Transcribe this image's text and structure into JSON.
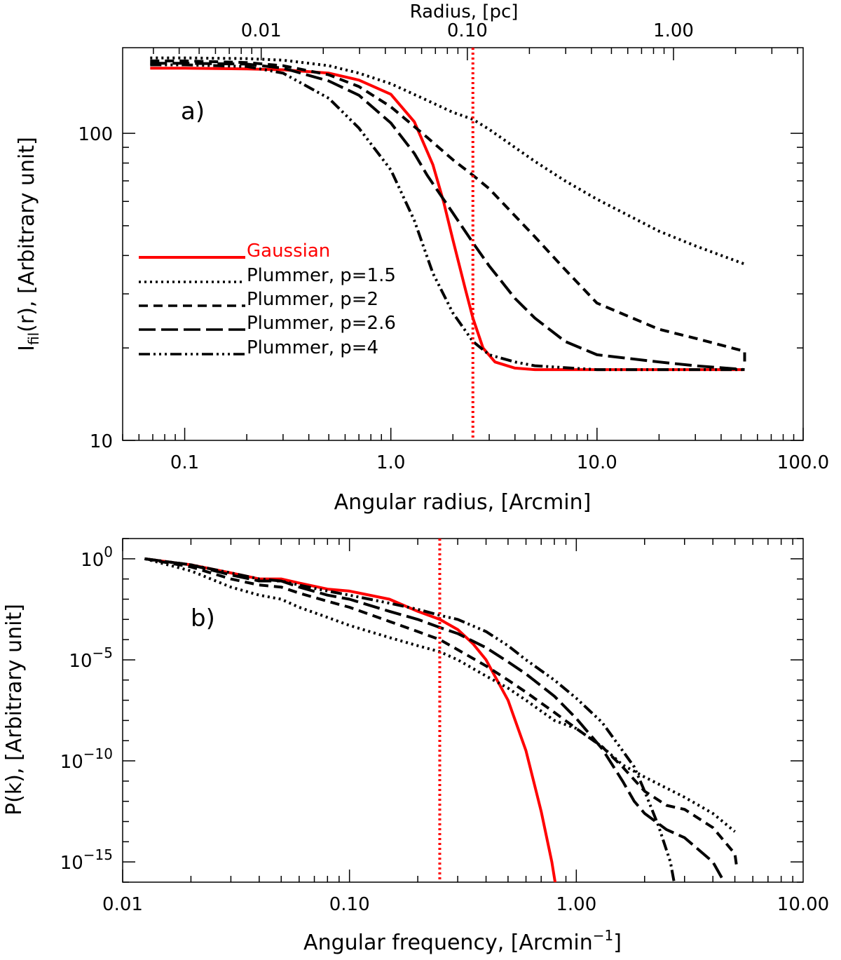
{
  "colors": {
    "gaussian": "#ff0000",
    "plummer": "#000000",
    "axis": "#000000"
  },
  "chart_data": [
    {
      "type": "line",
      "panel_label": "a)",
      "xlabel": "Angular radius, [Arcmin]",
      "ylabel_main": "I",
      "ylabel_sub": "fil",
      "ylabel_rest": "(r), [Arbitrary unit]",
      "top_xlabel": "Radius, [pc]",
      "xscale": "log",
      "yscale": "log",
      "xlim": [
        0.05,
        100
      ],
      "ylim": [
        10,
        190
      ],
      "xticks": [
        {
          "value": 0.1,
          "label": "0.1"
        },
        {
          "value": 1,
          "label": "1.0"
        },
        {
          "value": 10,
          "label": "10.0"
        },
        {
          "value": 100,
          "label": "100.0"
        }
      ],
      "yticks": [
        {
          "value": 10,
          "label": "10"
        },
        {
          "value": 100,
          "label": "100"
        }
      ],
      "top_ticks": [
        {
          "value": 0.01,
          "label": "0.01"
        },
        {
          "value": 0.1,
          "label": "0.10"
        },
        {
          "value": 1,
          "label": "1.00"
        }
      ],
      "top_axis_scale_arcmin_per_pc": 23.5,
      "vline_x": 2.5,
      "legend": [
        "Gaussian",
        "Plummer, p=1.5",
        "Plummer, p=2",
        "Plummer, p=2.6",
        "Plummer, p=4"
      ],
      "series": [
        {
          "name": "Gaussian",
          "style": "solid",
          "color": "#ff0000",
          "points": [
            [
              0.068,
              163
            ],
            [
              0.1,
              163
            ],
            [
              0.2,
              162
            ],
            [
              0.3,
              161
            ],
            [
              0.5,
              157
            ],
            [
              0.7,
              149
            ],
            [
              1.0,
              134
            ],
            [
              1.3,
              109
            ],
            [
              1.6,
              79
            ],
            [
              1.8,
              60
            ],
            [
              2.0,
              45
            ],
            [
              2.3,
              31
            ],
            [
              2.5,
              25
            ],
            [
              2.8,
              20
            ],
            [
              3.2,
              18
            ],
            [
              4.0,
              17.2
            ],
            [
              5.0,
              17
            ],
            [
              10,
              17
            ],
            [
              20,
              17
            ],
            [
              52,
              17
            ]
          ]
        },
        {
          "name": "Plummer, p=1.5",
          "style": "dotted",
          "color": "#000000",
          "points": [
            [
              0.068,
              176
            ],
            [
              0.1,
              176
            ],
            [
              0.2,
              175
            ],
            [
              0.3,
              173
            ],
            [
              0.5,
              166
            ],
            [
              0.7,
              157
            ],
            [
              1.0,
              145
            ],
            [
              1.5,
              128
            ],
            [
              2.0,
              117
            ],
            [
              2.5,
              111
            ],
            [
              3.0,
              103
            ],
            [
              5.0,
              81
            ],
            [
              7.0,
              70
            ],
            [
              10,
              61
            ],
            [
              20,
              48
            ],
            [
              30,
              43
            ],
            [
              52,
              37.5
            ]
          ]
        },
        {
          "name": "Plummer, p=2",
          "style": "dashed",
          "color": "#000000",
          "points": [
            [
              0.068,
              172
            ],
            [
              0.1,
              172
            ],
            [
              0.2,
              170
            ],
            [
              0.3,
              166
            ],
            [
              0.5,
              155
            ],
            [
              0.7,
              142
            ],
            [
              1.0,
              122
            ],
            [
              1.5,
              97
            ],
            [
              2.0,
              82
            ],
            [
              2.5,
              73
            ],
            [
              3.0,
              66
            ],
            [
              5.0,
              46
            ],
            [
              7.0,
              36
            ],
            [
              10,
              28
            ],
            [
              20,
              23
            ],
            [
              30,
              21.5
            ],
            [
              52,
              19.5
            ],
            [
              52,
              18
            ]
          ]
        },
        {
          "name": "Plummer, p=2.6",
          "style": "longdash",
          "color": "#000000",
          "points": [
            [
              0.068,
              169
            ],
            [
              0.1,
              169
            ],
            [
              0.2,
              168
            ],
            [
              0.3,
              163
            ],
            [
              0.5,
              148
            ],
            [
              0.7,
              133
            ],
            [
              1.0,
              108
            ],
            [
              1.3,
              86
            ],
            [
              1.5,
              73
            ],
            [
              2.0,
              55
            ],
            [
              2.5,
              44
            ],
            [
              3.0,
              37
            ],
            [
              4.0,
              29
            ],
            [
              5.0,
              25
            ],
            [
              7.0,
              21
            ],
            [
              10,
              19
            ],
            [
              20,
              18
            ],
            [
              30,
              17.5
            ],
            [
              52,
              17
            ]
          ]
        },
        {
          "name": "Plummer, p=4",
          "style": "dashdotdot",
          "color": "#000000",
          "points": [
            [
              0.068,
              167
            ],
            [
              0.1,
              167
            ],
            [
              0.2,
              165
            ],
            [
              0.3,
              157
            ],
            [
              0.5,
              130
            ],
            [
              0.7,
              104
            ],
            [
              1.0,
              76
            ],
            [
              1.3,
              52
            ],
            [
              1.6,
              35
            ],
            [
              2.0,
              26
            ],
            [
              2.5,
              21
            ],
            [
              3.0,
              19
            ],
            [
              4.0,
              18
            ],
            [
              5.0,
              17.5
            ],
            [
              10,
              17
            ],
            [
              52,
              17
            ]
          ]
        }
      ]
    },
    {
      "type": "line",
      "panel_label": "b)",
      "xlabel_main": "Angular frequency, [Arcmin",
      "xlabel_sup": "−1",
      "xlabel_end": "]",
      "ylabel": "P(k), [Arbitrary unit]",
      "xscale": "log",
      "yscale": "log",
      "xlim": [
        0.01,
        10
      ],
      "ylim_exp": [
        -16,
        1
      ],
      "xticks": [
        {
          "value": 0.01,
          "label": "0.01"
        },
        {
          "value": 0.1,
          "label": "0.10"
        },
        {
          "value": 1,
          "label": "1.00"
        },
        {
          "value": 10,
          "label": "10.00"
        }
      ],
      "yticks": [
        {
          "exp": 0,
          "base": "10",
          "sup": "0"
        },
        {
          "exp": -5,
          "base": "10",
          "sup": "−5"
        },
        {
          "exp": -10,
          "base": "10",
          "sup": "−10"
        },
        {
          "exp": -15,
          "base": "10",
          "sup": "−15"
        }
      ],
      "vline_x": 0.25,
      "panel_label_pos": "upper-left",
      "series": [
        {
          "name": "Gaussian",
          "style": "solid",
          "color": "#ff0000",
          "points_exp": [
            [
              0.0125,
              0
            ],
            [
              0.02,
              -0.3
            ],
            [
              0.03,
              -0.7
            ],
            [
              0.04,
              -1.0
            ],
            [
              0.05,
              -1.0
            ],
            [
              0.06,
              -1.2
            ],
            [
              0.08,
              -1.5
            ],
            [
              0.1,
              -1.6
            ],
            [
              0.15,
              -2.0
            ],
            [
              0.2,
              -2.6
            ],
            [
              0.25,
              -3.0
            ],
            [
              0.3,
              -3.5
            ],
            [
              0.35,
              -4.2
            ],
            [
              0.4,
              -5.0
            ],
            [
              0.5,
              -7.0
            ],
            [
              0.6,
              -9.5
            ],
            [
              0.7,
              -12.5
            ],
            [
              0.78,
              -15.0
            ],
            [
              0.82,
              -16.5
            ]
          ]
        },
        {
          "name": "Plummer, p=1.5",
          "style": "dotted",
          "color": "#000000",
          "points_exp": [
            [
              0.0125,
              0
            ],
            [
              0.02,
              -0.6
            ],
            [
              0.03,
              -1.4
            ],
            [
              0.04,
              -1.8
            ],
            [
              0.05,
              -2.0
            ],
            [
              0.06,
              -2.4
            ],
            [
              0.08,
              -2.9
            ],
            [
              0.1,
              -3.3
            ],
            [
              0.15,
              -3.9
            ],
            [
              0.2,
              -4.3
            ],
            [
              0.25,
              -4.6
            ],
            [
              0.3,
              -5.0
            ],
            [
              0.4,
              -5.8
            ],
            [
              0.5,
              -6.4
            ],
            [
              0.6,
              -7.0
            ],
            [
              0.8,
              -8.0
            ],
            [
              1.0,
              -8.4
            ],
            [
              1.3,
              -9.3
            ],
            [
              1.6,
              -10.2
            ],
            [
              2.0,
              -10.8
            ],
            [
              3.0,
              -11.8
            ],
            [
              4.0,
              -12.6
            ],
            [
              5.0,
              -13.5
            ]
          ]
        },
        {
          "name": "Plummer, p=2",
          "style": "dashed",
          "color": "#000000",
          "points_exp": [
            [
              0.0125,
              0
            ],
            [
              0.02,
              -0.4
            ],
            [
              0.03,
              -1.0
            ],
            [
              0.04,
              -1.3
            ],
            [
              0.05,
              -1.4
            ],
            [
              0.06,
              -1.7
            ],
            [
              0.08,
              -2.1
            ],
            [
              0.1,
              -2.4
            ],
            [
              0.15,
              -3.1
            ],
            [
              0.2,
              -3.6
            ],
            [
              0.25,
              -4.0
            ],
            [
              0.3,
              -4.5
            ],
            [
              0.4,
              -5.3
            ],
            [
              0.5,
              -6.0
            ],
            [
              0.6,
              -6.6
            ],
            [
              0.8,
              -7.6
            ],
            [
              1.0,
              -8.4
            ],
            [
              1.3,
              -9.3
            ],
            [
              1.6,
              -10.3
            ],
            [
              2.0,
              -11.5
            ],
            [
              2.5,
              -12.2
            ],
            [
              3.0,
              -12.4
            ],
            [
              4.0,
              -13.3
            ],
            [
              5.0,
              -14.6
            ],
            [
              5.1,
              -15.3
            ]
          ]
        },
        {
          "name": "Plummer, p=2.6",
          "style": "longdash",
          "color": "#000000",
          "points_exp": [
            [
              0.0125,
              0
            ],
            [
              0.02,
              -0.3
            ],
            [
              0.03,
              -0.8
            ],
            [
              0.04,
              -1.1
            ],
            [
              0.05,
              -1.1
            ],
            [
              0.06,
              -1.4
            ],
            [
              0.08,
              -1.8
            ],
            [
              0.1,
              -2.0
            ],
            [
              0.15,
              -2.6
            ],
            [
              0.2,
              -3.0
            ],
            [
              0.25,
              -3.4
            ],
            [
              0.3,
              -3.7
            ],
            [
              0.4,
              -4.4
            ],
            [
              0.5,
              -5.1
            ],
            [
              0.6,
              -5.7
            ],
            [
              0.8,
              -6.8
            ],
            [
              1.0,
              -7.9
            ],
            [
              1.3,
              -9.4
            ],
            [
              1.6,
              -11.0
            ],
            [
              1.8,
              -12.0
            ],
            [
              2.0,
              -12.6
            ],
            [
              2.5,
              -13.4
            ],
            [
              3.0,
              -13.8
            ],
            [
              4.0,
              -15.0
            ],
            [
              4.7,
              -16.4
            ]
          ]
        },
        {
          "name": "Plummer, p=4",
          "style": "dashdotdot",
          "color": "#000000",
          "points_exp": [
            [
              0.0125,
              0
            ],
            [
              0.02,
              -0.3
            ],
            [
              0.03,
              -0.7
            ],
            [
              0.04,
              -1.0
            ],
            [
              0.05,
              -1.1
            ],
            [
              0.06,
              -1.3
            ],
            [
              0.08,
              -1.6
            ],
            [
              0.1,
              -1.8
            ],
            [
              0.15,
              -2.2
            ],
            [
              0.2,
              -2.5
            ],
            [
              0.25,
              -2.8
            ],
            [
              0.3,
              -3.0
            ],
            [
              0.4,
              -3.6
            ],
            [
              0.5,
              -4.3
            ],
            [
              0.6,
              -5.0
            ],
            [
              0.8,
              -6.0
            ],
            [
              1.0,
              -6.9
            ],
            [
              1.3,
              -8.1
            ],
            [
              1.6,
              -9.5
            ],
            [
              1.8,
              -10.3
            ],
            [
              2.0,
              -11.5
            ],
            [
              2.3,
              -13.2
            ],
            [
              2.6,
              -15.0
            ],
            [
              2.75,
              -16.5
            ]
          ]
        }
      ]
    }
  ]
}
